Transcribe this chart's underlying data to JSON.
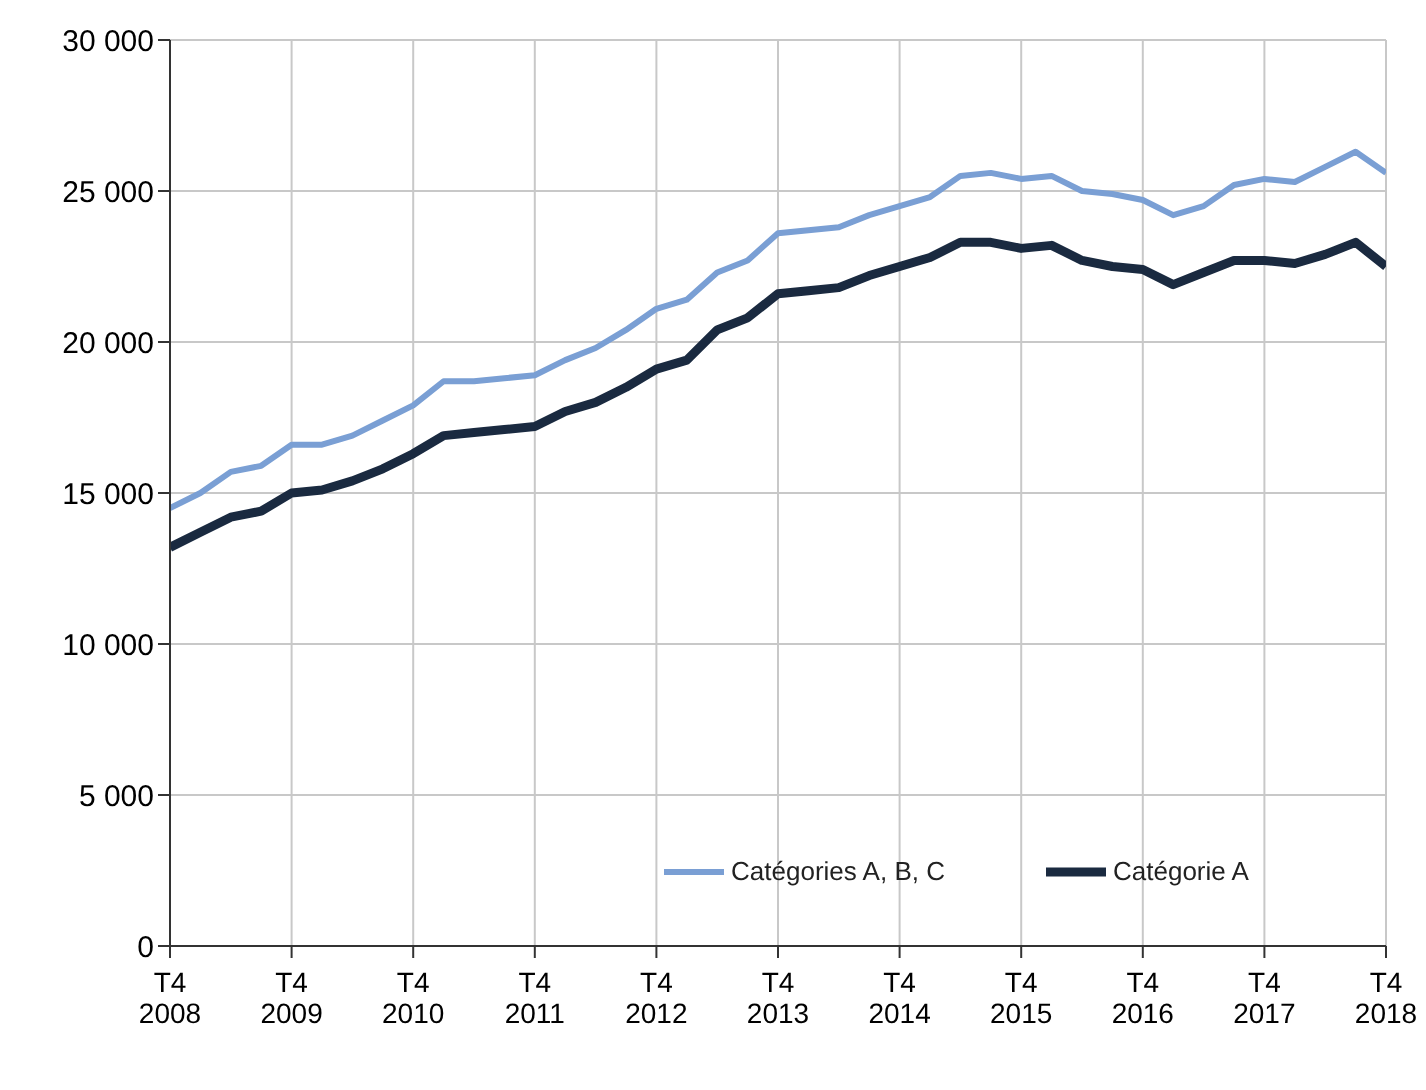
{
  "chart_data": {
    "type": "line",
    "categories": [
      "T4 2008",
      null,
      null,
      null,
      "T4 2009",
      null,
      null,
      null,
      "T4 2010",
      null,
      null,
      null,
      "T4 2011",
      null,
      null,
      null,
      "T4 2012",
      null,
      null,
      null,
      "T4 2013",
      null,
      null,
      null,
      "T4 2014",
      null,
      null,
      null,
      "T4 2015",
      null,
      null,
      null,
      "T4 2016",
      null,
      null,
      null,
      "T4 2017",
      null,
      null,
      null,
      "T4 2018"
    ],
    "series": [
      {
        "name": "Catégories A, B, C",
        "color": "#7a9fd4",
        "values": [
          14500,
          15000,
          15700,
          15900,
          16600,
          16600,
          16900,
          17400,
          17900,
          18700,
          18700,
          18800,
          18900,
          19400,
          19800,
          20400,
          21100,
          21400,
          22300,
          22700,
          23600,
          23700,
          23800,
          24200,
          24500,
          24800,
          25500,
          25600,
          25400,
          25500,
          25000,
          24900,
          24700,
          24200,
          24500,
          25200,
          25400,
          25300,
          25800,
          26300,
          25600
        ]
      },
      {
        "name": "Catégorie A",
        "color": "#1a2a40",
        "values": [
          13200,
          13700,
          14200,
          14400,
          15000,
          15100,
          15400,
          15800,
          16300,
          16900,
          17000,
          17100,
          17200,
          17700,
          18000,
          18500,
          19100,
          19400,
          20400,
          20800,
          21600,
          21700,
          21800,
          22200,
          22500,
          22800,
          23300,
          23300,
          23100,
          23200,
          22700,
          22500,
          22400,
          21900,
          22300,
          22700,
          22700,
          22600,
          22900,
          23300,
          22500
        ]
      }
    ],
    "ylim": [
      0,
      30000
    ],
    "yticks": [
      {
        "value": 0,
        "label": "0"
      },
      {
        "value": 5000,
        "label": "5 000"
      },
      {
        "value": 10000,
        "label": "10 000"
      },
      {
        "value": 15000,
        "label": "15 000"
      },
      {
        "value": 20000,
        "label": "20 000"
      },
      {
        "value": 25000,
        "label": "25 000"
      },
      {
        "value": 30000,
        "label": "30 000"
      }
    ],
    "grid": true,
    "legend": "bottom",
    "marker": "none",
    "line_style": "solid"
  }
}
